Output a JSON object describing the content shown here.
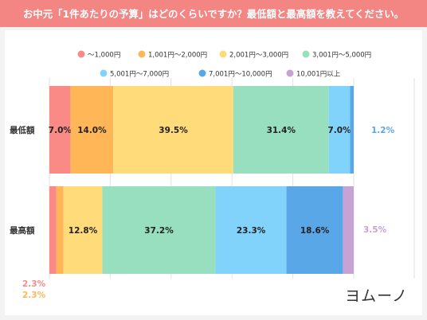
{
  "title": "お中元「1件あたりの予算」はどのくらいですか？最低額と最高額を教えてください。",
  "logo": "ヨムーノ",
  "chart_data": {
    "type": "bar",
    "orientation": "horizontal",
    "stacked": true,
    "normalized": true,
    "categories": [
      "最低額",
      "最高額"
    ],
    "series": [
      {
        "name": "〜1,000円",
        "color": "#fa8a86",
        "values": [
          7.0,
          2.3
        ]
      },
      {
        "name": "1,001円〜2,000円",
        "color": "#ffb657",
        "values": [
          14.0,
          2.3
        ]
      },
      {
        "name": "2,001円〜3,000円",
        "color": "#ffdc79",
        "values": [
          39.5,
          12.8
        ]
      },
      {
        "name": "3,001円〜5,000円",
        "color": "#98dfbf",
        "values": [
          31.4,
          37.2
        ]
      },
      {
        "name": "5,001円〜7,000円",
        "color": "#82d3fb",
        "values": [
          7.0,
          23.3
        ]
      },
      {
        "name": "7,001円〜10,000円",
        "color": "#5aa7e8",
        "values": [
          1.2,
          18.6
        ]
      },
      {
        "name": "10,001円以上",
        "color": "#c6a3d2",
        "values": [
          0,
          3.5
        ]
      }
    ],
    "data_labels": [
      [
        "7.0%",
        "14.0%",
        "39.5%",
        "31.4%",
        "7.0%",
        "1.2%",
        null
      ],
      [
        "2.3%",
        "2.3%",
        "12.8%",
        "37.2%",
        "23.3%",
        "18.6%",
        "3.5%"
      ]
    ],
    "xlim": [
      0,
      100
    ],
    "legend_position": "top",
    "grid": true
  }
}
